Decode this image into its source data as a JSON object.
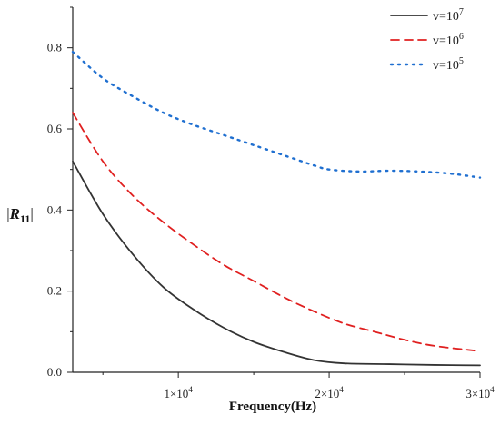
{
  "chart_data": {
    "type": "line",
    "title": "",
    "xlabel": "Frequency(Hz)",
    "ylabel": {
      "bar": "|",
      "symbol": "R",
      "subscript": "11"
    },
    "xlim": [
      3000,
      30000
    ],
    "ylim": [
      0,
      0.9
    ],
    "grid": false,
    "legend_position": "top-right",
    "x_ticks": [
      {
        "value": 10000,
        "mantissa": "1×10",
        "exp": "4"
      },
      {
        "value": 20000,
        "mantissa": "2×10",
        "exp": "4"
      },
      {
        "value": 30000,
        "mantissa": "3×10",
        "exp": "4"
      }
    ],
    "y_ticks": [
      {
        "value": 0.0,
        "label": "0.0"
      },
      {
        "value": 0.2,
        "label": "0.2"
      },
      {
        "value": 0.4,
        "label": "0.4"
      },
      {
        "value": 0.6,
        "label": "0.6"
      },
      {
        "value": 0.8,
        "label": "0.8"
      }
    ],
    "series": [
      {
        "name": "v=10⁷",
        "name_base": "v=10",
        "name_exp": "7",
        "color": "#333333",
        "style": "solid",
        "x": [
          3000,
          5000,
          7000,
          9000,
          11000,
          13000,
          15000,
          17000,
          19000,
          21000,
          24000,
          27000,
          30000
        ],
        "y": [
          0.52,
          0.39,
          0.29,
          0.21,
          0.155,
          0.11,
          0.075,
          0.05,
          0.03,
          0.022,
          0.02,
          0.018,
          0.017
        ]
      },
      {
        "name": "v=10⁶",
        "name_base": "v=10",
        "name_exp": "6",
        "color": "#e02020",
        "style": "dashed",
        "x": [
          3000,
          5000,
          7000,
          9000,
          11000,
          13000,
          15000,
          17000,
          19000,
          21000,
          23000,
          25000,
          27000,
          30000
        ],
        "y": [
          0.64,
          0.52,
          0.435,
          0.37,
          0.315,
          0.265,
          0.225,
          0.185,
          0.15,
          0.12,
          0.1,
          0.08,
          0.065,
          0.052
        ]
      },
      {
        "name": "v=10⁵",
        "name_base": "v=10",
        "name_exp": "5",
        "color": "#1f6fd0",
        "style": "dotted",
        "x": [
          3000,
          5000,
          7000,
          9000,
          11000,
          13000,
          15000,
          17000,
          19000,
          20000,
          22000,
          24000,
          26000,
          28000,
          30000
        ],
        "y": [
          0.79,
          0.725,
          0.68,
          0.64,
          0.61,
          0.585,
          0.56,
          0.535,
          0.51,
          0.5,
          0.495,
          0.497,
          0.495,
          0.49,
          0.48
        ]
      }
    ]
  }
}
